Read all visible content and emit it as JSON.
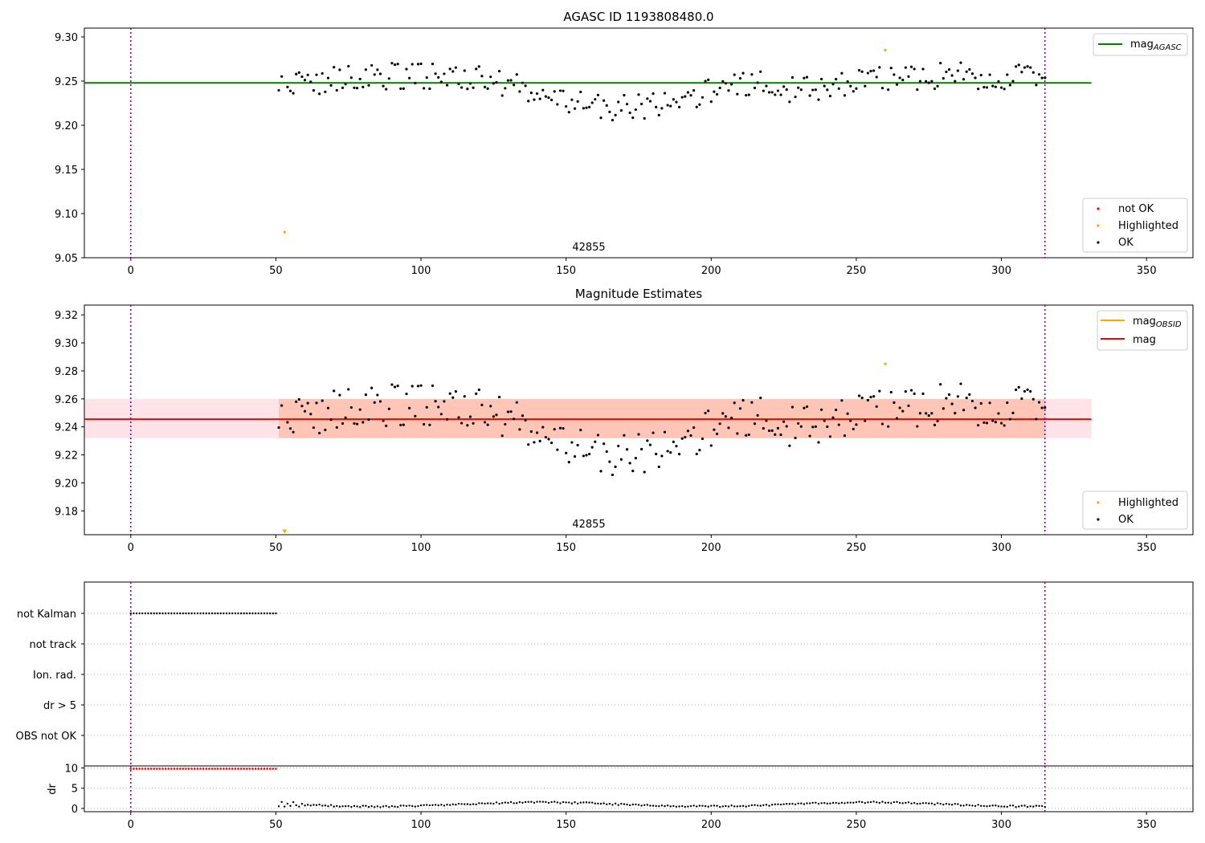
{
  "colors": {
    "ok": "#000000",
    "highlighted": "#ffa500",
    "not_ok": "#ff0000",
    "mag_agasc": "#008000",
    "mag_obsid": "#ffa500",
    "mag": "#ff0000",
    "band_outer": "#ffc0cb",
    "band_inner": "#ffa07a",
    "limit_line": "#800080",
    "grid": "#b0b0b0"
  },
  "chart_data": [
    {
      "type": "scatter",
      "title": "AGASC ID 1193808480.0",
      "xlim": [
        -16,
        366
      ],
      "ylim": [
        9.05,
        9.31
      ],
      "xticks": [
        0,
        50,
        100,
        150,
        200,
        250,
        300,
        350
      ],
      "yticks": [
        9.05,
        9.1,
        9.15,
        9.2,
        9.25,
        9.3
      ],
      "ytick_labels": [
        "9.05",
        "9.10",
        "9.15",
        "9.20",
        "9.25",
        "9.30"
      ],
      "vlines": [
        0,
        315
      ],
      "hlines": [
        {
          "name": "mag_AGASC",
          "y": 9.248,
          "x": [
            -16,
            331
          ]
        }
      ],
      "annotation": {
        "text": "42855",
        "x": 157.5
      },
      "series": [
        {
          "name": "not OK",
          "values": []
        },
        {
          "name": "Highlighted",
          "points": [
            [
              53,
              9.079
            ],
            [
              260,
              9.285
            ]
          ]
        },
        {
          "name": "OK",
          "range": [
            51,
            315
          ],
          "mean": 9.244
        }
      ],
      "legends": [
        {
          "position": "top-right",
          "entries": [
            {
              "label": "mag",
              "sub": "AGASC",
              "kind": "line",
              "color": "#008000"
            }
          ]
        },
        {
          "position": "bottom-right",
          "entries": [
            {
              "label": "not OK",
              "kind": "dot",
              "color": "#ff0000"
            },
            {
              "label": "Highlighted",
              "kind": "dot",
              "color": "#ffa500"
            },
            {
              "label": "OK",
              "kind": "dot",
              "color": "#000000"
            }
          ]
        }
      ]
    },
    {
      "type": "scatter",
      "title": "Magnitude Estimates",
      "xlim": [
        -16,
        366
      ],
      "ylim": [
        9.163,
        9.327
      ],
      "xticks": [
        0,
        50,
        100,
        150,
        200,
        250,
        300,
        350
      ],
      "yticks": [
        9.18,
        9.2,
        9.22,
        9.24,
        9.26,
        9.28,
        9.3,
        9.32
      ],
      "ytick_labels": [
        "9.18",
        "9.20",
        "9.22",
        "9.24",
        "9.26",
        "9.28",
        "9.30",
        "9.32"
      ],
      "vlines": [
        0,
        315
      ],
      "bands": [
        {
          "name": "mag range",
          "x": [
            -16,
            331
          ],
          "y": [
            9.232,
            9.26
          ],
          "color": "#ffc0cb"
        },
        {
          "name": "mag_OBSID range",
          "x": [
            51,
            315
          ],
          "y": [
            9.232,
            9.26
          ],
          "color": "#ffa07a"
        }
      ],
      "hlines": [
        {
          "name": "mag_OBSID",
          "y": 9.2455,
          "x": [
            51,
            315
          ]
        },
        {
          "name": "mag",
          "y": 9.2455,
          "x": [
            -16,
            331
          ]
        }
      ],
      "annotation": {
        "text": "42855",
        "x": 157.5
      },
      "series": [
        {
          "name": "Highlighted",
          "points": [
            [
              260,
              9.285
            ]
          ],
          "off_scale_marker": [
            53,
            9.165
          ]
        },
        {
          "name": "OK",
          "range": [
            51,
            315
          ],
          "mean": 9.244
        }
      ],
      "legends": [
        {
          "position": "top-right",
          "entries": [
            {
              "label": "mag",
              "sub": "OBSID",
              "kind": "line",
              "color": "#ffa500"
            },
            {
              "label": "mag",
              "kind": "line",
              "color": "#ff0000"
            }
          ]
        },
        {
          "position": "bottom-right",
          "entries": [
            {
              "label": "Highlighted",
              "kind": "dot",
              "color": "#ffa500"
            },
            {
              "label": "OK",
              "kind": "dot",
              "color": "#000000"
            }
          ]
        }
      ]
    },
    {
      "type": "scatter",
      "title": "",
      "xlim": [
        -16,
        366
      ],
      "categories": [
        "not Kalman",
        "not track",
        "Ion. rad.",
        "dr > 5",
        "OBS not OK"
      ],
      "vlines": [
        0,
        315
      ],
      "flags": [
        {
          "category": "not Kalman",
          "x_range": [
            0,
            50
          ],
          "step": 1
        }
      ]
    },
    {
      "type": "scatter",
      "title": "",
      "ylabel": "dr",
      "xlim": [
        -16,
        366
      ],
      "ylim": [
        -0.8,
        10.5
      ],
      "xticks": [
        0,
        50,
        100,
        150,
        200,
        250,
        300,
        350
      ],
      "yticks": [
        0,
        5,
        10
      ],
      "ytick_labels": [
        "0",
        "5",
        "10"
      ],
      "vlines": [
        0,
        315
      ],
      "series": [
        {
          "name": "dr > 10",
          "x_range": [
            0,
            50
          ],
          "value": 9.8
        },
        {
          "name": "dr",
          "x_range": [
            51,
            315
          ],
          "mean": 1.0
        }
      ]
    }
  ]
}
